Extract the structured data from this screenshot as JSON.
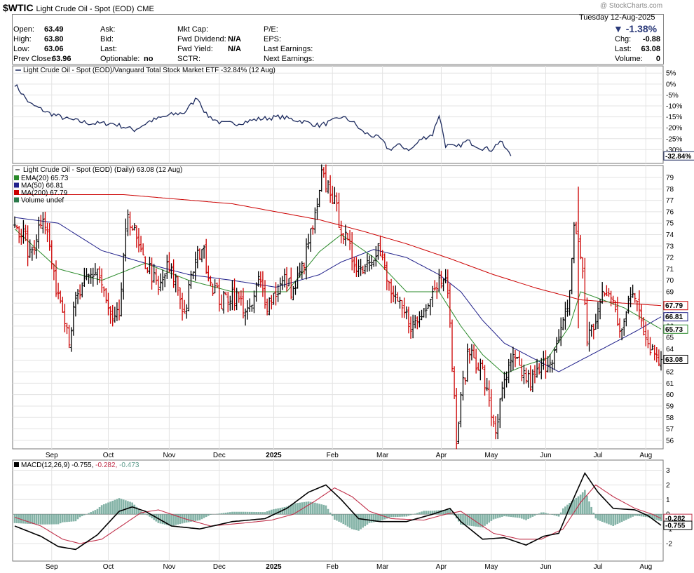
{
  "header": {
    "symbol": "$WTIC",
    "name": "Light Crude Oil - Spot (EOD)",
    "exchange": "CME",
    "watermark": "@ StockCharts.com",
    "date": "Tuesday  12-Aug-2025",
    "change_pct": "▼ -1.38%",
    "open_label": "Open:",
    "open": "63.49",
    "high_label": "High:",
    "high": "63.80",
    "low_label": "Low:",
    "low": "63.06",
    "prev_label": "Prev Close:",
    "prev": "63.96",
    "ask_label": "Ask:",
    "ask": "",
    "bid_label": "Bid:",
    "bid": "",
    "last_label": "Last:",
    "last_mid": "",
    "opt_label": "Optionable:",
    "opt": "no",
    "mcap_label": "Mkt Cap:",
    "mcap": "",
    "fdiv_label": "Fwd Dividend:",
    "fdiv": "N/A",
    "fyield_label": "Fwd Yield:",
    "fyield": "N/A",
    "sctr_label": "SCTR:",
    "sctr": "",
    "pe_label": "P/E:",
    "pe": "",
    "eps_label": "EPS:",
    "eps": "",
    "lastearn_label": "Last Earnings:",
    "lastearn": "",
    "nextearn_label": "Next Earnings:",
    "nextearn": "",
    "chg_label": "Chg:",
    "chg": "-0.88",
    "last_label2": "Last:",
    "last2": "63.08",
    "vol_label": "Volume:",
    "vol": "0"
  },
  "colors": {
    "bar_up": "#000000",
    "bar_down": "#cc0000",
    "ema20": "#2a8a2a",
    "ma50": "#20208a",
    "ma200": "#cc0000",
    "ratio": "#1c2a5e",
    "macd": "#000000",
    "signal": "#c0304a",
    "hist": "#5b9a8a"
  },
  "chart_data": [
    {
      "type": "line",
      "panel": "ratio",
      "title": "Light Crude Oil - Spot (EOD)/Vanguard Total Stock Market ETF -32.84% (12 Aug)",
      "y_ticks": [
        "5%",
        "0%",
        "-5%",
        "-10%",
        "-15%",
        "-20%",
        "-25%",
        "-30%"
      ],
      "y_tick_values": [
        5,
        0,
        -5,
        -10,
        -15,
        -20,
        -25,
        -30
      ],
      "ylim": [
        -35,
        7
      ],
      "last_label": "-32.84%",
      "anchors": [
        [
          0,
          0
        ],
        [
          7,
          -9
        ],
        [
          15,
          -13
        ],
        [
          24,
          -16
        ],
        [
          35,
          -18
        ],
        [
          45,
          -18
        ],
        [
          55,
          -21
        ],
        [
          62,
          -17
        ],
        [
          72,
          -14
        ],
        [
          78,
          -13
        ],
        [
          84,
          -6
        ],
        [
          88,
          -14
        ],
        [
          95,
          -18
        ],
        [
          102,
          -18
        ],
        [
          112,
          -16
        ],
        [
          122,
          -15
        ],
        [
          132,
          -17
        ],
        [
          140,
          -19
        ],
        [
          146,
          -17
        ],
        [
          150,
          -15
        ],
        [
          155,
          -17
        ],
        [
          160,
          -22
        ],
        [
          168,
          -25
        ],
        [
          172,
          -30
        ],
        [
          176,
          -28
        ],
        [
          182,
          -30
        ],
        [
          187,
          -25
        ],
        [
          192,
          -23
        ],
        [
          195,
          -14
        ],
        [
          198,
          -28
        ],
        [
          203,
          -29
        ],
        [
          208,
          -26
        ],
        [
          214,
          -29
        ],
        [
          219,
          -30
        ],
        [
          223,
          -26
        ],
        [
          228,
          -32.84
        ]
      ]
    },
    {
      "type": "bar",
      "panel": "price",
      "title": "Light Crude Oil - Spot (EOD) (Daily) 63.08 (12 Aug)",
      "legend": [
        {
          "name": "EMA(20) 65.73",
          "color": "#2a8a2a"
        },
        {
          "name": "MA(50) 66.81",
          "color": "#20208a"
        },
        {
          "name": "MA(200) 67.79",
          "color": "#cc0000"
        },
        {
          "name": "Volume undef",
          "color": "#2a7a4a"
        }
      ],
      "y_ticks": [
        56,
        57,
        58,
        59,
        60,
        61,
        62,
        63,
        64,
        65,
        66,
        67,
        68,
        69,
        70,
        71,
        72,
        73,
        74,
        75,
        76,
        77,
        78,
        79
      ],
      "ylim": [
        55.5,
        79.8
      ],
      "last_labels": [
        {
          "text": "67.79",
          "value": 67.79,
          "color": "#cc0000"
        },
        {
          "text": "66.81",
          "value": 66.81,
          "color": "#20208a"
        },
        {
          "text": "65.73",
          "value": 65.73,
          "color": "#2a8a2a"
        },
        {
          "text": "63.08",
          "value": 63.08,
          "color": "#000000"
        }
      ],
      "close_anchors": [
        [
          0,
          75
        ],
        [
          4,
          74
        ],
        [
          7,
          72
        ],
        [
          10,
          74
        ],
        [
          13,
          76
        ],
        [
          16,
          73
        ],
        [
          18,
          70
        ],
        [
          22,
          68
        ],
        [
          25,
          65
        ],
        [
          28,
          68
        ],
        [
          33,
          70
        ],
        [
          38,
          71
        ],
        [
          42,
          68
        ],
        [
          45,
          66
        ],
        [
          48,
          67
        ],
        [
          52,
          76
        ],
        [
          55,
          74
        ],
        [
          58,
          72
        ],
        [
          62,
          71
        ],
        [
          66,
          69
        ],
        [
          70,
          71
        ],
        [
          74,
          70
        ],
        [
          78,
          67
        ],
        [
          82,
          71
        ],
        [
          86,
          73
        ],
        [
          90,
          70
        ],
        [
          95,
          68
        ],
        [
          100,
          69
        ],
        [
          104,
          68
        ],
        [
          108,
          67
        ],
        [
          112,
          70
        ],
        [
          116,
          68
        ],
        [
          120,
          69
        ],
        [
          124,
          70
        ],
        [
          128,
          69
        ],
        [
          132,
          71
        ],
        [
          136,
          74
        ],
        [
          139,
          76
        ],
        [
          141,
          79
        ],
        [
          145,
          78
        ],
        [
          148,
          76
        ],
        [
          151,
          74
        ],
        [
          155,
          72
        ],
        [
          159,
          71
        ],
        [
          163,
          72
        ],
        [
          167,
          73
        ],
        [
          171,
          70
        ],
        [
          175,
          68
        ],
        [
          179,
          67
        ],
        [
          183,
          66
        ],
        [
          187,
          67
        ],
        [
          191,
          69
        ],
        [
          195,
          70
        ],
        [
          198,
          71
        ],
        [
          201,
          63
        ],
        [
          203,
          56
        ],
        [
          206,
          61
        ],
        [
          209,
          64
        ],
        [
          212,
          63
        ],
        [
          215,
          62
        ],
        [
          218,
          59
        ],
        [
          221,
          57
        ],
        [
          225,
          61
        ],
        [
          229,
          63
        ],
        [
          233,
          62
        ],
        [
          237,
          61
        ],
        [
          241,
          62
        ],
        [
          245,
          63
        ],
        [
          249,
          64
        ],
        [
          252,
          66
        ],
        [
          255,
          69
        ],
        [
          257,
          75
        ],
        [
          259,
          73
        ],
        [
          261,
          71
        ],
        [
          263,
          65
        ],
        [
          266,
          66
        ],
        [
          269,
          68
        ],
        [
          272,
          69
        ],
        [
          275,
          68
        ],
        [
          278,
          66
        ],
        [
          281,
          67
        ],
        [
          284,
          69
        ],
        [
          287,
          68
        ],
        [
          290,
          65
        ],
        [
          293,
          64
        ],
        [
          297,
          63.08
        ]
      ],
      "spike": {
        "index": 259,
        "high": 78.2,
        "low": 65.8
      },
      "ema20_anchors": [
        [
          0,
          74.5
        ],
        [
          20,
          71
        ],
        [
          40,
          70
        ],
        [
          60,
          71.5
        ],
        [
          80,
          70
        ],
        [
          100,
          69
        ],
        [
          125,
          69
        ],
        [
          140,
          72.5
        ],
        [
          150,
          74
        ],
        [
          165,
          72
        ],
        [
          180,
          69
        ],
        [
          195,
          69
        ],
        [
          205,
          66
        ],
        [
          215,
          63.5
        ],
        [
          225,
          61.8
        ],
        [
          235,
          62.6
        ],
        [
          245,
          63.2
        ],
        [
          255,
          66
        ],
        [
          260,
          69
        ],
        [
          270,
          68.3
        ],
        [
          280,
          67.6
        ],
        [
          290,
          66.5
        ],
        [
          297,
          65.73
        ]
      ],
      "ma50_anchors": [
        [
          0,
          75.5
        ],
        [
          20,
          75
        ],
        [
          40,
          72.6
        ],
        [
          60,
          71.5
        ],
        [
          80,
          70.5
        ],
        [
          100,
          70
        ],
        [
          120,
          69.4
        ],
        [
          140,
          70.5
        ],
        [
          150,
          71.6
        ],
        [
          165,
          72.7
        ],
        [
          180,
          72
        ],
        [
          195,
          70.5
        ],
        [
          205,
          69
        ],
        [
          215,
          66.5
        ],
        [
          225,
          64.5
        ],
        [
          240,
          63
        ],
        [
          250,
          62
        ],
        [
          260,
          63
        ],
        [
          270,
          64
        ],
        [
          285,
          65.5
        ],
        [
          297,
          66.81
        ]
      ],
      "ma200_anchors": [
        [
          0,
          77.5
        ],
        [
          50,
          77.5
        ],
        [
          100,
          76.7
        ],
        [
          140,
          75.3
        ],
        [
          160,
          74.3
        ],
        [
          180,
          73.2
        ],
        [
          200,
          71.9
        ],
        [
          220,
          70.5
        ],
        [
          240,
          69.3
        ],
        [
          260,
          68.3
        ],
        [
          280,
          68
        ],
        [
          297,
          67.79
        ]
      ]
    },
    {
      "type": "line",
      "panel": "macd",
      "title": "MACD(12,26,9) -0.755, -0.282, -0.473",
      "legend_parts": [
        "MACD(12,26,9) -0.755, ",
        "-0.282, ",
        "-0.473"
      ],
      "y_ticks": [
        3,
        2,
        1,
        0,
        -1,
        -2
      ],
      "y_tick_values": [
        3,
        2,
        1,
        0,
        -1,
        -2
      ],
      "ylim": [
        -3,
        3.5
      ],
      "last_labels": [
        {
          "text": "-0.282",
          "value": -0.282,
          "color": "#c0304a"
        },
        {
          "text": "-0.755",
          "value": -0.755,
          "color": "#000000"
        }
      ],
      "macd_anchors": [
        [
          0,
          -0.8
        ],
        [
          12,
          -1.5
        ],
        [
          20,
          -2.2
        ],
        [
          28,
          -2.4
        ],
        [
          38,
          -1.4
        ],
        [
          48,
          0.2
        ],
        [
          54,
          0.5
        ],
        [
          60,
          0.2
        ],
        [
          72,
          -0.8
        ],
        [
          85,
          -1.0
        ],
        [
          100,
          -0.5
        ],
        [
          115,
          -0.3
        ],
        [
          125,
          0.4
        ],
        [
          135,
          1.5
        ],
        [
          143,
          2.0
        ],
        [
          150,
          1.0
        ],
        [
          158,
          -0.3
        ],
        [
          168,
          -0.5
        ],
        [
          180,
          -0.5
        ],
        [
          192,
          0.0
        ],
        [
          200,
          0.4
        ],
        [
          205,
          -0.5
        ],
        [
          215,
          -1.7
        ],
        [
          225,
          -1.6
        ],
        [
          235,
          -2.1
        ],
        [
          243,
          -1.5
        ],
        [
          250,
          -1.3
        ],
        [
          256,
          0.8
        ],
        [
          262,
          2.8
        ],
        [
          268,
          1.5
        ],
        [
          275,
          0.4
        ],
        [
          285,
          0.3
        ],
        [
          291,
          -0.1
        ],
        [
          297,
          -0.755
        ]
      ],
      "signal_anchors": [
        [
          0,
          -0.2
        ],
        [
          12,
          -0.8
        ],
        [
          22,
          -1.7
        ],
        [
          30,
          -2.0
        ],
        [
          40,
          -1.7
        ],
        [
          50,
          -0.7
        ],
        [
          58,
          0.1
        ],
        [
          66,
          0.3
        ],
        [
          78,
          -0.3
        ],
        [
          90,
          -0.8
        ],
        [
          105,
          -0.6
        ],
        [
          118,
          -0.4
        ],
        [
          128,
          0.0
        ],
        [
          138,
          0.9
        ],
        [
          147,
          1.8
        ],
        [
          155,
          1.2
        ],
        [
          163,
          0.2
        ],
        [
          173,
          -0.3
        ],
        [
          188,
          -0.4
        ],
        [
          198,
          0.0
        ],
        [
          205,
          0.2
        ],
        [
          212,
          -0.5
        ],
        [
          220,
          -1.3
        ],
        [
          232,
          -1.7
        ],
        [
          242,
          -1.7
        ],
        [
          252,
          -1.0
        ],
        [
          260,
          0.8
        ],
        [
          267,
          2.0
        ],
        [
          275,
          1.2
        ],
        [
          285,
          0.4
        ],
        [
          293,
          0.0
        ],
        [
          297,
          -0.282
        ]
      ]
    }
  ],
  "x_axis": {
    "labels": [
      {
        "text": "Sep",
        "bold": false,
        "index": 17
      },
      {
        "text": "Oct",
        "bold": false,
        "index": 43
      },
      {
        "text": "Nov",
        "bold": false,
        "index": 71
      },
      {
        "text": "Dec",
        "bold": false,
        "index": 94
      },
      {
        "text": "2025",
        "bold": true,
        "index": 119
      },
      {
        "text": "Feb",
        "bold": false,
        "index": 146
      },
      {
        "text": "Mar",
        "bold": false,
        "index": 169
      },
      {
        "text": "Apr",
        "bold": false,
        "index": 196
      },
      {
        "text": "May",
        "bold": false,
        "index": 219
      },
      {
        "text": "Jun",
        "bold": false,
        "index": 244
      },
      {
        "text": "Jul",
        "bold": false,
        "index": 268
      },
      {
        "text": "Aug",
        "bold": false,
        "index": 290
      }
    ],
    "count": 298
  }
}
